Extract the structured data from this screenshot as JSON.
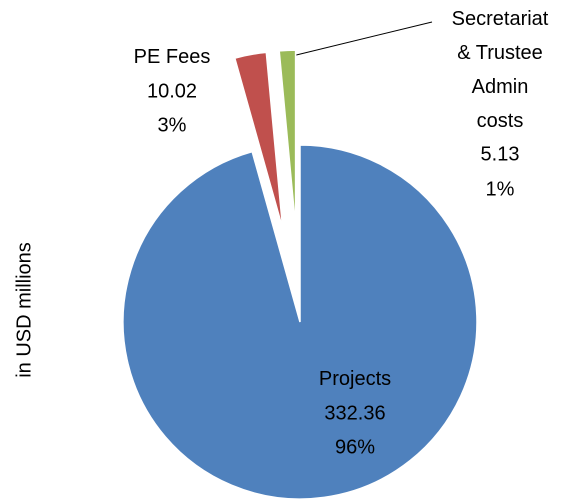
{
  "chart_data": {
    "type": "pie",
    "y_label": "in USD millions",
    "categories": [
      "Projects",
      "PE Fees",
      "Secretariat & Trustee Admin costs"
    ],
    "values": [
      332.36,
      10.02,
      5.13
    ],
    "percent_labels": [
      "96%",
      "3%",
      "1%"
    ],
    "colors": [
      "#4f81bd",
      "#c0504d",
      "#9bbb59"
    ],
    "exploded": [
      false,
      true,
      true
    ]
  }
}
